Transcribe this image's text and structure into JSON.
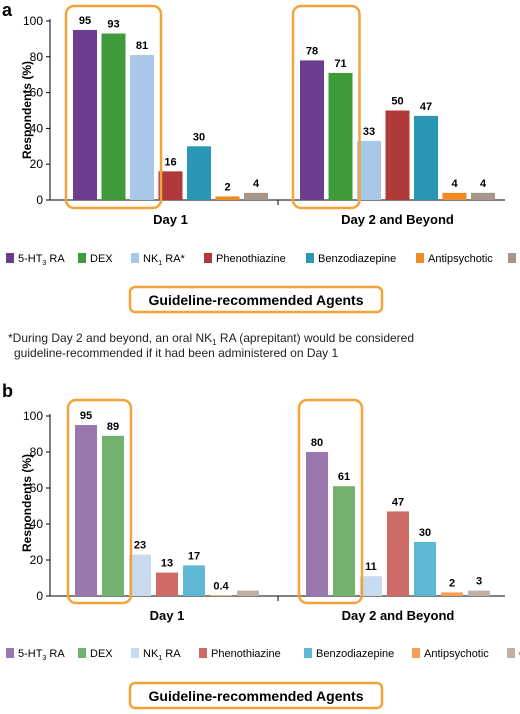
{
  "chart_data": [
    {
      "type": "bar",
      "panel_label": "a",
      "ylabel": "Respondents (%)",
      "ylim": [
        0,
        100
      ],
      "yticks": [
        0,
        20,
        40,
        60,
        80,
        100
      ],
      "groups": [
        "Day 1",
        "Day 2 and Beyond"
      ],
      "series": [
        {
          "name": "5-HT3 RA",
          "color": "#6b3d8f",
          "values": [
            95,
            78
          ]
        },
        {
          "name": "DEX",
          "color": "#3f9a3a",
          "values": [
            93,
            71
          ]
        },
        {
          "name": "NK1 RA*",
          "color": "#a9c8e8",
          "values": [
            81,
            33
          ]
        },
        {
          "name": "Phenothiazine",
          "color": "#b03a3a",
          "values": [
            16,
            50
          ]
        },
        {
          "name": "Benzodiazepine",
          "color": "#2a96b5",
          "values": [
            30,
            47
          ]
        },
        {
          "name": "Antipsychotic",
          "color": "#f08a24",
          "values": [
            2,
            4
          ]
        },
        {
          "name": "Other",
          "color": "#a8968c",
          "values": [
            4,
            4
          ]
        }
      ],
      "value_labels": [
        [
          "95",
          "93",
          "81",
          "16",
          "30",
          "2",
          "4"
        ],
        [
          "78",
          "71",
          "33",
          "50",
          "47",
          "4",
          "4"
        ]
      ],
      "highlight": [
        [
          "5-HT3 RA",
          "DEX",
          "NK1 RA*"
        ],
        [
          "5-HT3 RA",
          "DEX"
        ]
      ],
      "legend_position": "bottom",
      "callout": "Guideline-recommended Agents"
    },
    {
      "type": "bar",
      "panel_label": "b",
      "ylabel": "Respondents (%)",
      "ylim": [
        0,
        100
      ],
      "yticks": [
        0,
        20,
        40,
        60,
        80,
        100
      ],
      "groups": [
        "Day 1",
        "Day 2 and Beyond"
      ],
      "series": [
        {
          "name": "5-HT3 RA",
          "color": "#9b77b0",
          "values": [
            95,
            80
          ]
        },
        {
          "name": "DEX",
          "color": "#73b26d",
          "values": [
            89,
            61
          ]
        },
        {
          "name": "NK1 RA",
          "color": "#c8daf0",
          "values": [
            23,
            11
          ]
        },
        {
          "name": "Phenothiazine",
          "color": "#cf6b66",
          "values": [
            13,
            47
          ]
        },
        {
          "name": "Benzodiazepine",
          "color": "#5fb8d3",
          "values": [
            17,
            30
          ]
        },
        {
          "name": "Antipsychotic",
          "color": "#f3a055",
          "values": [
            0.4,
            2
          ]
        },
        {
          "name": "Other",
          "color": "#bfb0a6",
          "values": [
            3,
            3
          ]
        }
      ],
      "value_labels": [
        [
          "95",
          "89",
          "23",
          "13",
          "17",
          "0.4",
          ""
        ],
        [
          "80",
          "61",
          "11",
          "47",
          "30",
          "2",
          "3"
        ]
      ],
      "highlight": [
        [
          "5-HT3 RA",
          "DEX"
        ],
        [
          "5-HT3 RA",
          "DEX"
        ]
      ],
      "legend_position": "bottom",
      "callout": "Guideline-recommended Agents"
    }
  ],
  "footnote": {
    "line1": "*During Day 2 and beyond, an oral NK",
    "line1_sub": "1",
    "line1_end": " RA (aprepitant) would be considered",
    "line2": "guideline-recommended if it had been administered on Day 1"
  },
  "accent_color": "#f2a43a"
}
